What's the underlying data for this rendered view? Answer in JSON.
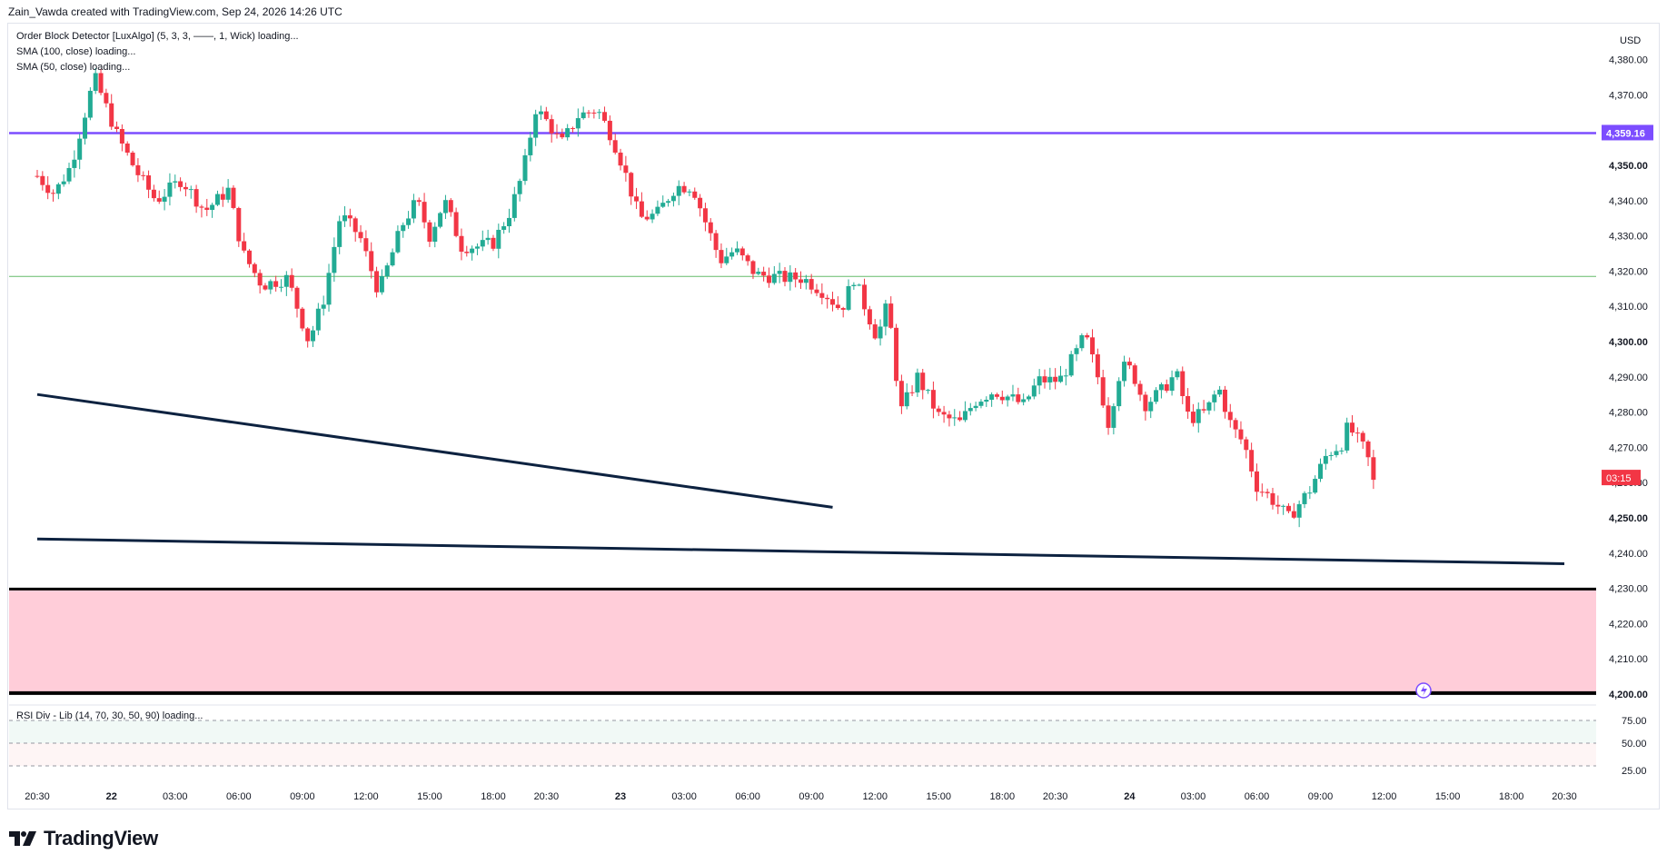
{
  "header": {
    "credit": "Zain_Vawda created with TradingView.com, Sep 24, 2026 14:26 UTC"
  },
  "indicators": {
    "ob": "Order Block Detector [LuxAlgo] (5, 3, 3, ——, 1, Wick) loading...",
    "sma100": "SMA (100, close) loading...",
    "sma50": "SMA (50, close) loading...",
    "rsi": "RSI Div - Lib (14, 70, 30, 50, 90) loading..."
  },
  "logo": {
    "text": "TradingView"
  },
  "colors": {
    "up": "#22ab94",
    "down": "#f23645",
    "purple": "#7c4dff",
    "green_line": "#66bb6a",
    "trend": "#0d2240",
    "zone_fill": "#ffcdd9",
    "countdown_bg": "#f23645"
  },
  "chart_data": {
    "type": "candlestick",
    "currency": "USD",
    "y_range": [
      4200,
      4390
    ],
    "y_ticks": [
      "4,380.00",
      "4,370.00",
      "4,360.00",
      "4,350.00",
      "4,340.00",
      "4,330.00",
      "4,320.00",
      "4,310.00",
      "4,300.00",
      "4,290.00",
      "4,280.00",
      "4,270.00",
      "4,260.00",
      "4,250.00",
      "4,240.00",
      "4,230.00",
      "4,220.00",
      "4,210.00",
      "4,200.00"
    ],
    "y_tick_values": [
      4380,
      4370,
      4360,
      4350,
      4340,
      4330,
      4320,
      4310,
      4300,
      4290,
      4280,
      4270,
      4260,
      4250,
      4240,
      4230,
      4220,
      4210,
      4200
    ],
    "x_ticks": [
      "20:30",
      "22",
      "03:00",
      "06:00",
      "09:00",
      "12:00",
      "15:00",
      "18:00",
      "20:30",
      "23",
      "03:00",
      "06:00",
      "09:00",
      "12:00",
      "15:00",
      "18:00",
      "20:30",
      "24",
      "03:00",
      "06:00",
      "09:00",
      "12:00",
      "15:00",
      "18:00",
      "20:30"
    ],
    "x_tick_bold": [
      false,
      true,
      false,
      false,
      false,
      false,
      false,
      false,
      false,
      true,
      false,
      false,
      false,
      false,
      false,
      false,
      false,
      true,
      false,
      false,
      false,
      false,
      false,
      false,
      false
    ],
    "x_tick_hours": [
      20.5,
      24,
      27,
      30,
      33,
      36,
      39,
      42,
      44.5,
      48,
      51,
      54,
      57,
      60,
      63,
      66,
      68.5,
      72,
      75,
      78,
      81,
      84,
      87,
      90,
      92.5
    ],
    "x_range_hours": [
      20.5,
      92.5
    ],
    "horizontal_lines": [
      {
        "price": 4359.16,
        "label": "4,359.16",
        "color": "#7c4dff"
      },
      {
        "price": 4318.5,
        "color": "#66bb6a"
      }
    ],
    "trendlines": [
      {
        "from": [
          20.5,
          4285
        ],
        "to": [
          58.0,
          4253
        ]
      },
      {
        "from": [
          20.5,
          4244
        ],
        "to": [
          92.5,
          4237
        ]
      }
    ],
    "zone": {
      "top": 4229.8,
      "bottom": 4200.3
    },
    "countdown": "03:15",
    "current_price": 4260.8,
    "anchors": [
      [
        20.5,
        4347
      ],
      [
        21.3,
        4342
      ],
      [
        22.1,
        4350
      ],
      [
        23.2,
        4375
      ],
      [
        24.3,
        4358
      ],
      [
        25.2,
        4348
      ],
      [
        26.1,
        4340
      ],
      [
        27.3,
        4346
      ],
      [
        28.4,
        4337
      ],
      [
        29.5,
        4343
      ],
      [
        30.2,
        4325
      ],
      [
        31.1,
        4316
      ],
      [
        32.3,
        4318
      ],
      [
        33.3,
        4300
      ],
      [
        34.0,
        4312
      ],
      [
        34.8,
        4336
      ],
      [
        35.7,
        4330
      ],
      [
        36.6,
        4314
      ],
      [
        37.7,
        4333
      ],
      [
        38.4,
        4340
      ],
      [
        39.0,
        4330
      ],
      [
        39.7,
        4340
      ],
      [
        40.5,
        4327
      ],
      [
        41.3,
        4327
      ],
      [
        42.0,
        4328
      ],
      [
        42.8,
        4337
      ],
      [
        43.4,
        4348
      ],
      [
        44.0,
        4366
      ],
      [
        44.6,
        4362
      ],
      [
        45.2,
        4356
      ],
      [
        46.0,
        4364
      ],
      [
        46.9,
        4366
      ],
      [
        47.6,
        4358
      ],
      [
        48.1,
        4350
      ],
      [
        48.9,
        4335
      ],
      [
        49.7,
        4336
      ],
      [
        50.6,
        4344
      ],
      [
        51.4,
        4344
      ],
      [
        52.0,
        4334
      ],
      [
        52.7,
        4323
      ],
      [
        53.4,
        4326
      ],
      [
        54.4,
        4319
      ],
      [
        55.8,
        4318
      ],
      [
        56.6,
        4318
      ],
      [
        57.6,
        4314
      ],
      [
        58.4,
        4309
      ],
      [
        59.0,
        4318
      ],
      [
        60.1,
        4301
      ],
      [
        60.6,
        4311
      ],
      [
        61.2,
        4280
      ],
      [
        62.0,
        4290
      ],
      [
        63.0,
        4279
      ],
      [
        64.0,
        4277
      ],
      [
        64.7,
        4283
      ],
      [
        65.6,
        4286
      ],
      [
        66.4,
        4284
      ],
      [
        67.0,
        4282
      ],
      [
        67.7,
        4289
      ],
      [
        68.7,
        4289
      ],
      [
        69.5,
        4297
      ],
      [
        69.9,
        4302
      ],
      [
        70.5,
        4290
      ],
      [
        71.0,
        4277
      ],
      [
        71.6,
        4293
      ],
      [
        72.1,
        4292
      ],
      [
        72.7,
        4282
      ],
      [
        73.5,
        4286
      ],
      [
        74.2,
        4291
      ],
      [
        74.8,
        4278
      ],
      [
        75.6,
        4280
      ],
      [
        76.2,
        4287
      ],
      [
        76.8,
        4276
      ],
      [
        77.4,
        4271
      ],
      [
        78.0,
        4259
      ],
      [
        78.6,
        4256
      ],
      [
        79.5,
        4250
      ],
      [
        80.5,
        4258
      ],
      [
        81.3,
        4268
      ],
      [
        82.0,
        4271
      ],
      [
        82.3,
        4276
      ],
      [
        83.0,
        4270
      ],
      [
        83.5,
        4263
      ]
    ]
  }
}
